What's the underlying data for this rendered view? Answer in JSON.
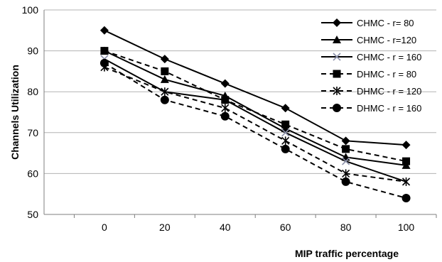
{
  "chart_data": {
    "type": "line",
    "title": "",
    "xlabel": "MIP traffic percentage",
    "ylabel": "Channels Utilization",
    "x": [
      0,
      20,
      40,
      60,
      80,
      100
    ],
    "xlim": [
      -20,
      110
    ],
    "ylim": [
      50,
      100
    ],
    "yticks": [
      50,
      60,
      70,
      80,
      90,
      100
    ],
    "grid": "horizontal",
    "legend_position": "top-right",
    "series": [
      {
        "name": "CHMC - r= 80",
        "marker": "diamond",
        "dash": "solid",
        "values": [
          95,
          88,
          82,
          76,
          68,
          67
        ]
      },
      {
        "name": "CHMC - r=120",
        "marker": "triangle",
        "dash": "solid",
        "values": [
          90,
          83,
          79,
          71,
          64,
          62
        ]
      },
      {
        "name": "CHMC - r = 160",
        "marker": "x",
        "dash": "solid",
        "values": [
          88,
          80,
          78,
          70,
          63,
          58
        ]
      },
      {
        "name": "DHMC - r = 80",
        "marker": "square",
        "dash": "dashed",
        "values": [
          90,
          85,
          78,
          72,
          66,
          63
        ]
      },
      {
        "name": "DHMC - r = 120",
        "marker": "asterisk",
        "dash": "dashed",
        "values": [
          86,
          80,
          76,
          68,
          60,
          58
        ]
      },
      {
        "name": "DHMC - r = 160",
        "marker": "circle",
        "dash": "dashed",
        "values": [
          87,
          78,
          74,
          66,
          58,
          54
        ]
      }
    ]
  }
}
